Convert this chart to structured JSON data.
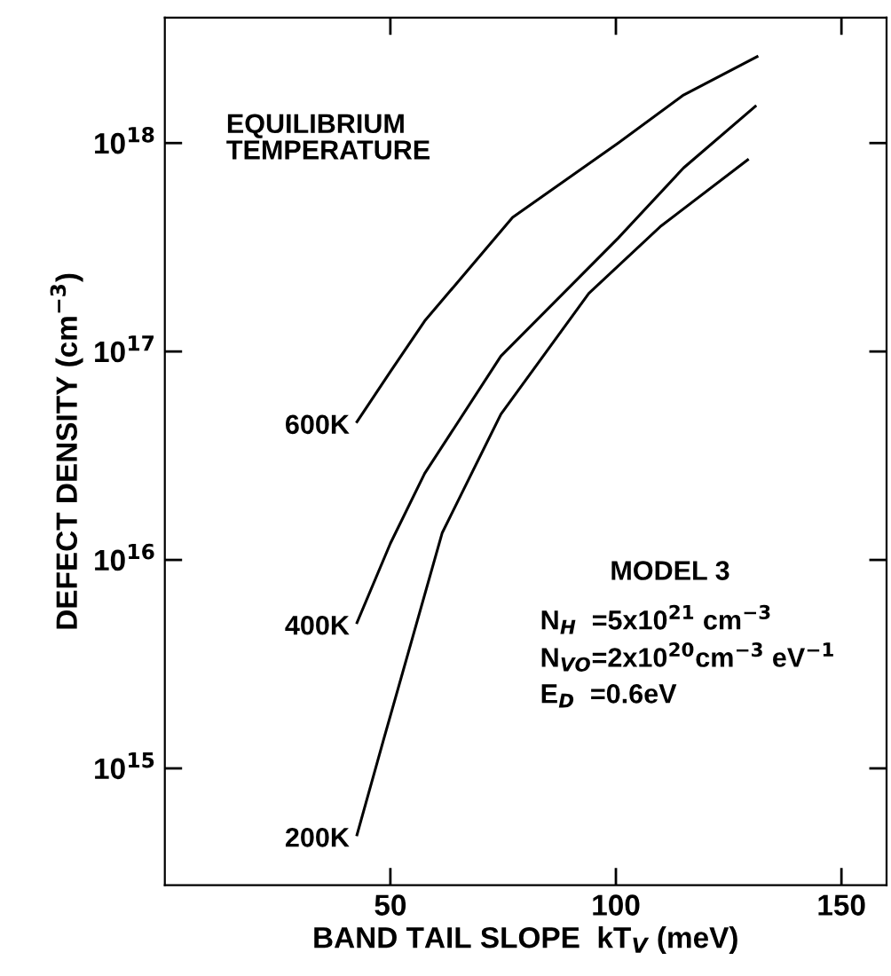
{
  "chart_data": {
    "type": "line",
    "xlabel": "BAND TAIL SLOPE  kT$_{V}$ (meV)",
    "ylabel": "DEFECT DENSITY (cm$^{−3}$)",
    "log": "y",
    "xlim": [
      0,
      160
    ],
    "xticks": [
      50,
      100,
      150
    ],
    "ylim": [
      275000000000000.0,
      4e+18
    ],
    "yticks": [
      {
        "value": 1000000000000000.0,
        "label": "10$^{15}$"
      },
      {
        "value": 1e+16,
        "label": "10$^{16}$"
      },
      {
        "value": 1e+17,
        "label": "10$^{17}$"
      },
      {
        "value": 1e+18,
        "label": "10$^{18}$"
      }
    ],
    "grid": false,
    "legend": false,
    "marker": "none",
    "line_style": "solid",
    "series": [
      {
        "name": "600K",
        "color": "#000000",
        "x": [
          42.6,
          50,
          57.6,
          77.1,
          100.5,
          115,
          131.3
        ],
        "values": [
          4.6e+16,
          8e+16,
          1.4e+17,
          4.4e+17,
          1e+18,
          1.7e+18,
          2.6e+18
        ]
      },
      {
        "name": "400K",
        "color": "#000000",
        "x": [
          42.6,
          50,
          57.6,
          74.5,
          100.5,
          115,
          130.9
        ],
        "values": [
          5000000000000000.0,
          1.2e+16,
          2.6e+16,
          9.5e+16,
          3.5e+17,
          7.6e+17,
          1.5e+18
        ]
      },
      {
        "name": "200K",
        "color": "#000000",
        "x": [
          42.6,
          48.4,
          55,
          61.5,
          74.5,
          94,
          110,
          129.2
        ],
        "values": [
          480000000000000.0,
          1350000000000000.0,
          4300000000000000.0,
          1.35e+16,
          5e+16,
          1.9e+17,
          4e+17,
          8.3e+17
        ]
      }
    ],
    "annotations": [
      "EQUILIBRIUM\nTEMPERATURE",
      "MODEL 3",
      "N$_{H}$  =5x10$^{21}$ cm$^{−3}$",
      "N$_{VO}$=2x10$^{20}$cm$^{−3}$ eV$^{−1}$",
      "E$_{D}$  =0.6eV"
    ]
  }
}
